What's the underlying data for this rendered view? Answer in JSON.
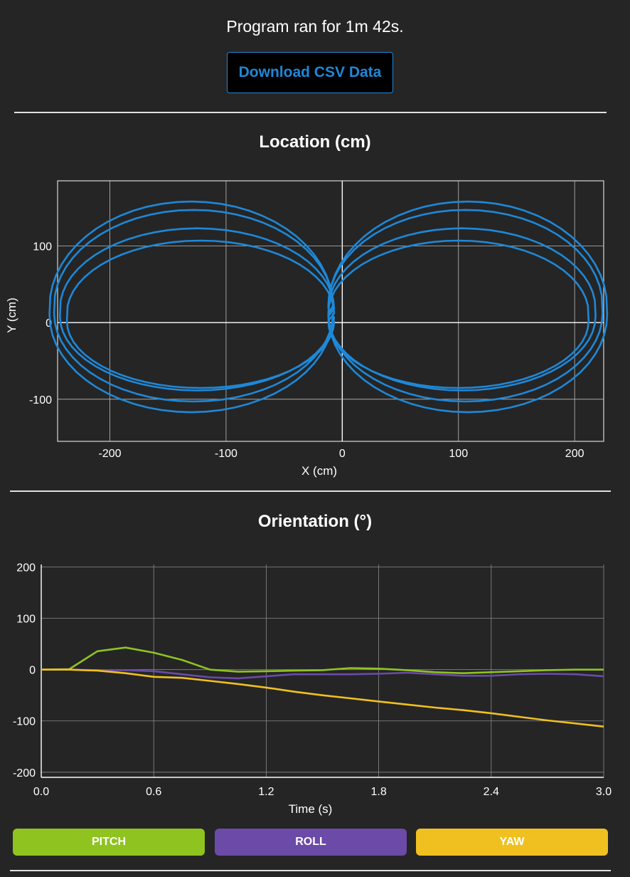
{
  "header": {
    "runtime_text": "Program ran for 1m 42s.",
    "download_label": "Download CSV Data"
  },
  "location_chart": {
    "title": "Location (cm)"
  },
  "orientation_chart": {
    "title": "Orientation (°)"
  },
  "legend": {
    "pitch_label": "PITCH",
    "roll_label": "ROLL",
    "yaw_label": "YAW"
  },
  "colors": {
    "background": "#252525",
    "accent_blue": "#1e88d8",
    "pitch": "#8fc320",
    "roll": "#6b4aa8",
    "yaw": "#f0c020"
  },
  "chart_data": [
    {
      "type": "line",
      "title": "Location (cm)",
      "xlabel": "X (cm)",
      "ylabel": "Y (cm)",
      "xlim": [
        -245,
        225
      ],
      "ylim": [
        -155,
        185
      ],
      "xticks": [
        -200,
        -100,
        0,
        100,
        200
      ],
      "yticks": [
        -100,
        0,
        100
      ],
      "grid": true,
      "series": [
        {
          "color": "#1e88d8",
          "description_shape": "figure-eight, 4 loops",
          "loops": [
            {
              "left_center_x": -122,
              "right_center_x": 100,
              "center_y": 12,
              "half_width_left": 115,
              "half_width_right": 112,
              "half_height": 95
            },
            {
              "left_center_x": -125,
              "right_center_x": 103,
              "center_y": 18,
              "half_width_left": 118,
              "half_width_right": 115,
              "half_height": 105
            },
            {
              "left_center_x": -128,
              "right_center_x": 106,
              "center_y": 22,
              "half_width_left": 120,
              "half_width_right": 118,
              "half_height": 125
            },
            {
              "left_center_x": -130,
              "right_center_x": 108,
              "center_y": 20,
              "half_width_left": 122,
              "half_width_right": 120,
              "half_height": 138
            }
          ]
        }
      ]
    },
    {
      "type": "line",
      "title": "Orientation (°)",
      "xlabel": "Time (s)",
      "ylabel": "",
      "xlim": [
        0,
        3.0
      ],
      "ylim": [
        -210,
        205
      ],
      "xticks": [
        "0.0",
        "0.6",
        "1.2",
        "1.8",
        "2.4",
        "3.0"
      ],
      "yticks": [
        200,
        100,
        0,
        -100,
        -200
      ],
      "grid": true,
      "series": [
        {
          "name": "PITCH",
          "color": "#8fc320",
          "x": [
            0,
            0.15,
            0.3,
            0.45,
            0.6,
            0.75,
            0.9,
            1.05,
            1.2,
            1.35,
            1.5,
            1.65,
            1.8,
            1.95,
            2.1,
            2.25,
            2.4,
            2.55,
            2.7,
            2.85,
            3.0
          ],
          "y": [
            0,
            1,
            36,
            43,
            33,
            19,
            0,
            -4,
            -3,
            -2,
            -1,
            3,
            2,
            -1,
            -5,
            -7,
            -5,
            -3,
            -1,
            0,
            0
          ]
        },
        {
          "name": "ROLL",
          "color": "#6b4aa8",
          "x": [
            0,
            0.15,
            0.3,
            0.45,
            0.6,
            0.75,
            0.9,
            1.05,
            1.2,
            1.35,
            1.5,
            1.65,
            1.8,
            1.95,
            2.1,
            2.25,
            2.4,
            2.55,
            2.7,
            2.85,
            3.0
          ],
          "y": [
            0,
            0,
            -1,
            -1,
            -3,
            -9,
            -15,
            -17,
            -13,
            -9,
            -9,
            -9,
            -8,
            -6,
            -9,
            -12,
            -12,
            -9,
            -8,
            -9,
            -13
          ]
        },
        {
          "name": "YAW",
          "color": "#f0c020",
          "x": [
            0,
            0.15,
            0.3,
            0.45,
            0.6,
            0.75,
            0.9,
            1.05,
            1.2,
            1.35,
            1.5,
            1.65,
            1.8,
            1.95,
            2.1,
            2.25,
            2.4,
            2.55,
            2.7,
            2.85,
            3.0
          ],
          "y": [
            0,
            0,
            -2,
            -7,
            -14,
            -16,
            -22,
            -28,
            -35,
            -43,
            -50,
            -56,
            -62,
            -68,
            -74,
            -79,
            -85,
            -92,
            -99,
            -105,
            -111
          ]
        }
      ]
    }
  ]
}
